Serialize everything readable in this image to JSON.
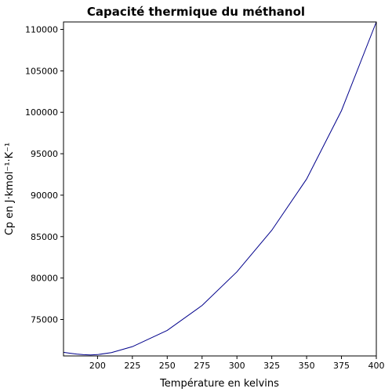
{
  "chart_data": {
    "type": "line",
    "title": "Capacité thermique du méthanol",
    "xlabel": "Température en kelvins",
    "ylabel": "Cp en J·kmol⁻¹·K⁻¹",
    "xlim": [
      175.6,
      400
    ],
    "ylim": [
      70600,
      110900
    ],
    "xticks": [
      200,
      225,
      250,
      275,
      300,
      325,
      350,
      375,
      400
    ],
    "xtick_labels": [
      "200",
      "225",
      "250",
      "275",
      "300",
      "325",
      "350",
      "375",
      "400"
    ],
    "yticks": [
      75000,
      80000,
      85000,
      90000,
      95000,
      100000,
      105000,
      110000
    ],
    "ytick_labels": [
      "75000",
      "80000",
      "85000",
      "90000",
      "95000",
      "100000",
      "105000",
      "110000"
    ],
    "grid": false,
    "series": [
      {
        "color": "#00008b",
        "x": [
          175.6,
          180,
          185,
          190,
          195,
          200,
          210,
          225,
          250,
          275,
          300,
          325,
          350,
          375,
          400
        ],
        "y": [
          71040,
          70930,
          70820,
          70750,
          70720,
          70760,
          71000,
          71720,
          73680,
          76690,
          80750,
          85760,
          91950,
          100200,
          110900
        ]
      }
    ]
  }
}
